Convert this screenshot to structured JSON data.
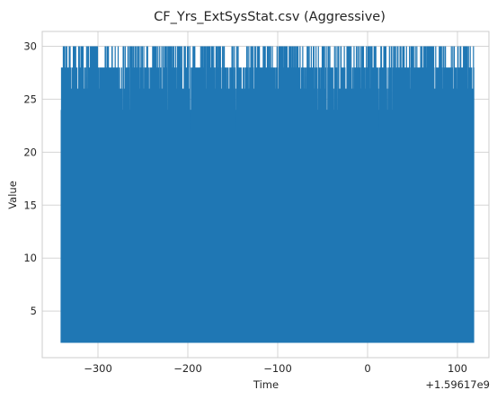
{
  "chart_data": {
    "type": "line",
    "title": "CF_Yrs_ExtSysStat.csv (Aggressive)",
    "xlabel": "Time",
    "ylabel": "Value",
    "x_offset_label": "+1.59617e9",
    "xlim": [
      -362,
      135
    ],
    "ylim": [
      0.6,
      31.4
    ],
    "x_ticks": [
      -300,
      -200,
      -100,
      0,
      100
    ],
    "x_tick_labels": [
      "−300",
      "−200",
      "−100",
      "0",
      "100"
    ],
    "y_ticks": [
      5,
      10,
      15,
      20,
      25,
      30
    ],
    "y_tick_labels": [
      "5",
      "10",
      "15",
      "20",
      "25",
      "30"
    ],
    "grid": true,
    "series": [
      {
        "name": "Value",
        "color": "#1f77b4",
        "x_range": [
          -341,
          118
        ],
        "min": 2,
        "max": 30,
        "levels": [
          2,
          22,
          24,
          26,
          28,
          30
        ],
        "description_of_density": "dense oscillation between 2 and upper levels (24-30)"
      }
    ]
  },
  "colors": {
    "line": "#1f77b4",
    "grid": "#d5d5d5",
    "text": "#262626",
    "frame": "#cccccc"
  }
}
